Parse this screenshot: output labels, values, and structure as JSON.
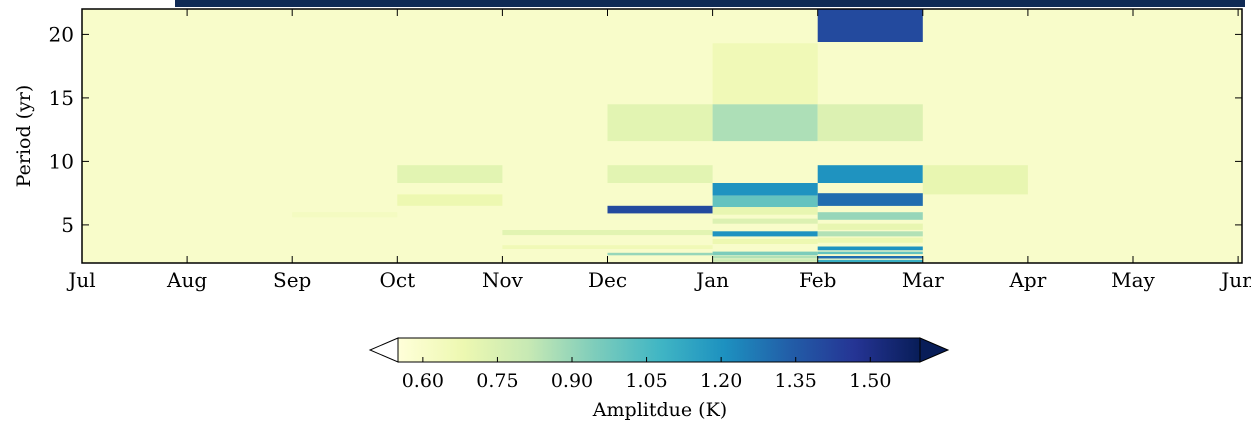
{
  "chart_data": {
    "type": "heatmap",
    "title": "",
    "xlabel": "",
    "ylabel": "Period (yr)",
    "x_categories": [
      "Jul",
      "Aug",
      "Sep",
      "Oct",
      "Nov",
      "Dec",
      "Jan",
      "Feb",
      "Mar",
      "Apr",
      "May",
      "Jun"
    ],
    "y_ticks": [
      5,
      10,
      15,
      20
    ],
    "ylim": [
      2,
      22
    ],
    "background_value": 0.6,
    "cells": [
      {
        "month": "Feb",
        "period": [
          19.4,
          22.0
        ],
        "value": 1.4
      },
      {
        "month": "Jan",
        "period": [
          14.5,
          19.3
        ],
        "value": 0.66
      },
      {
        "month": "Dec",
        "period": [
          11.6,
          14.5
        ],
        "value": 0.72
      },
      {
        "month": "Jan",
        "period": [
          11.6,
          14.5
        ],
        "value": 0.86
      },
      {
        "month": "Feb",
        "period": [
          11.6,
          14.5
        ],
        "value": 0.74
      },
      {
        "month": "Oct",
        "period": [
          8.3,
          9.7
        ],
        "value": 0.72
      },
      {
        "month": "Dec",
        "period": [
          8.3,
          9.7
        ],
        "value": 0.72
      },
      {
        "month": "Feb",
        "period": [
          8.3,
          9.7
        ],
        "value": 1.2
      },
      {
        "month": "Mar",
        "period": [
          7.4,
          9.7
        ],
        "value": 0.7
      },
      {
        "month": "Jan",
        "period": [
          7.3,
          8.3
        ],
        "value": 1.2
      },
      {
        "month": "Oct",
        "period": [
          6.5,
          7.4
        ],
        "value": 0.68
      },
      {
        "month": "Jan",
        "period": [
          6.4,
          7.3
        ],
        "value": 1.0
      },
      {
        "month": "Feb",
        "period": [
          6.5,
          7.5
        ],
        "value": 1.3
      },
      {
        "month": "Dec",
        "period": [
          5.9,
          6.5
        ],
        "value": 1.4
      },
      {
        "month": "Jan",
        "period": [
          5.8,
          6.4
        ],
        "value": 0.7
      },
      {
        "month": "Sep",
        "period": [
          5.6,
          6.0
        ],
        "value": 0.63
      },
      {
        "month": "Feb",
        "period": [
          5.4,
          6.0
        ],
        "value": 0.9
      },
      {
        "month": "Jan",
        "period": [
          5.1,
          5.5
        ],
        "value": 0.74
      },
      {
        "month": "Feb",
        "period": [
          4.6,
          5.1
        ],
        "value": 0.7
      },
      {
        "month": "Nov",
        "period": [
          4.2,
          4.6
        ],
        "value": 0.72
      },
      {
        "month": "Dec",
        "period": [
          4.2,
          4.6
        ],
        "value": 0.72
      },
      {
        "month": "Jan",
        "period": [
          4.1,
          4.5
        ],
        "value": 1.2
      },
      {
        "month": "Feb",
        "period": [
          4.1,
          4.5
        ],
        "value": 0.85
      },
      {
        "month": "Jan",
        "period": [
          3.5,
          3.9
        ],
        "value": 0.68
      },
      {
        "month": "Feb",
        "period": [
          3.6,
          4.0
        ],
        "value": 0.68
      },
      {
        "month": "Nov",
        "period": [
          3.1,
          3.4
        ],
        "value": 0.66
      },
      {
        "month": "Dec",
        "period": [
          3.1,
          3.4
        ],
        "value": 0.66
      },
      {
        "month": "Feb",
        "period": [
          3.0,
          3.3
        ],
        "value": 1.2
      },
      {
        "month": "Dec",
        "period": [
          2.6,
          2.8
        ],
        "value": 0.9
      },
      {
        "month": "Jan",
        "period": [
          2.6,
          2.9
        ],
        "value": 0.95
      },
      {
        "month": "Feb",
        "period": [
          2.7,
          2.9
        ],
        "value": 1.0
      },
      {
        "month": "Jan",
        "period": [
          2.35,
          2.55
        ],
        "value": 0.85
      },
      {
        "month": "Feb",
        "period": [
          2.35,
          2.55
        ],
        "value": 1.3
      },
      {
        "month": "Jan",
        "period": [
          2.1,
          2.3
        ],
        "value": 0.8
      },
      {
        "month": "Feb",
        "period": [
          2.05,
          2.25
        ],
        "value": 1.1
      }
    ],
    "colorbar": {
      "label": "Amplitdue (K)",
      "ticks": [
        "0.60",
        "0.75",
        "0.90",
        "1.05",
        "1.20",
        "1.35",
        "1.50"
      ],
      "vmin": 0.55,
      "vmax": 1.6,
      "extend": "both",
      "colormap": "YlGnBu",
      "colormap_stops": [
        "#ffffd9",
        "#edf8b1",
        "#c7e9b4",
        "#7fcdbb",
        "#41b6c4",
        "#1d91c0",
        "#225ea8",
        "#253494",
        "#081d58"
      ]
    },
    "grid": false
  },
  "frame_color": "#0f2a55"
}
